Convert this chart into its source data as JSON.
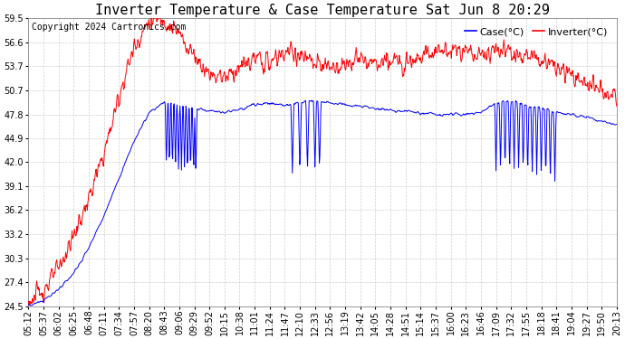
{
  "title": "Inverter Temperature & Case Temperature Sat Jun 8 20:29",
  "copyright": "Copyright 2024 Cartronics.com",
  "legend_case": "Case(°C)",
  "legend_inverter": "Inverter(°C)",
  "case_color": "blue",
  "inverter_color": "red",
  "background_color": "#ffffff",
  "grid_color": "#bbbbbb",
  "ylim": [
    24.5,
    59.5
  ],
  "yticks": [
    24.5,
    27.4,
    30.3,
    33.2,
    36.2,
    39.1,
    42.0,
    44.9,
    47.8,
    50.7,
    53.7,
    56.6,
    59.5
  ],
  "xtick_labels": [
    "05:12",
    "05:37",
    "06:02",
    "06:25",
    "06:48",
    "07:11",
    "07:34",
    "07:57",
    "08:20",
    "08:43",
    "09:06",
    "09:29",
    "09:52",
    "10:15",
    "10:38",
    "11:01",
    "11:24",
    "11:47",
    "12:10",
    "12:33",
    "12:56",
    "13:19",
    "13:42",
    "14:05",
    "14:28",
    "14:51",
    "15:14",
    "15:37",
    "16:00",
    "16:23",
    "16:46",
    "17:09",
    "17:32",
    "17:55",
    "18:18",
    "18:41",
    "19:04",
    "19:27",
    "19:50",
    "20:13"
  ],
  "title_fontsize": 11,
  "copyright_fontsize": 7,
  "legend_fontsize": 8,
  "tick_fontsize": 7,
  "figsize": [
    6.9,
    3.75
  ],
  "dpi": 100
}
